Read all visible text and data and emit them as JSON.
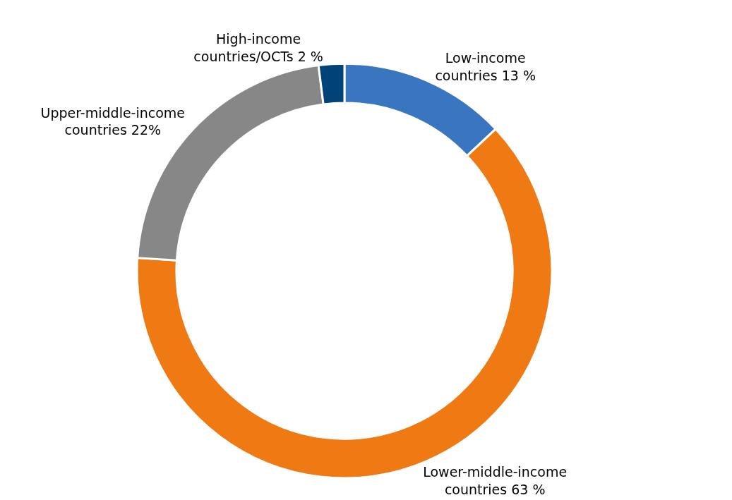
{
  "chart_data": {
    "type": "donut",
    "categories": [
      "Low-income countries",
      "Lower-middle-income countries",
      "Upper-middle-income countries",
      "High-income countries/OCTs"
    ],
    "values": [
      13,
      63,
      22,
      2
    ],
    "value_labels": [
      "13 %",
      "63 %",
      "22%",
      "2 %"
    ],
    "colors": [
      "#3a75bf",
      "#ef7912",
      "#878787",
      "#004379"
    ]
  }
}
